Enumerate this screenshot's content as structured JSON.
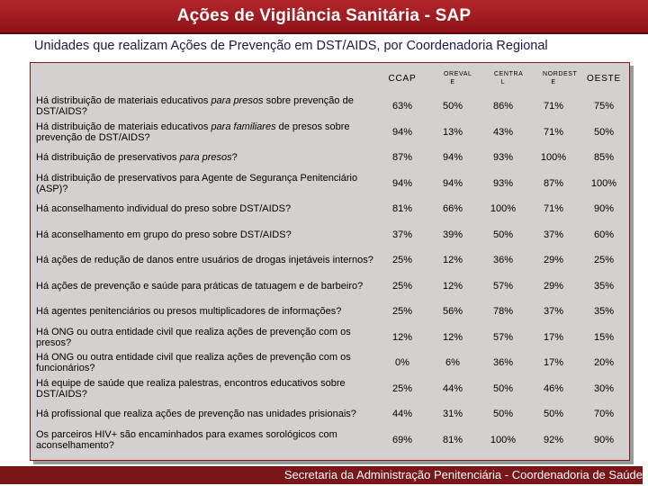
{
  "header": {
    "title": "Ações de Vigilância Sanitária - SAP",
    "subtitle": "Unidades que realizam Ações de Prevenção em DST/AIDS, por Coordenadoria Regional"
  },
  "table": {
    "columns": [
      "CCAP",
      "OREVAL E",
      "CENTRA L",
      "NORDEST E",
      "OESTE"
    ],
    "rows": [
      {
        "q_pre": "Há distribuição de materiais educativos ",
        "q_em": "para presos",
        "q_post": " sobre prevenção  de DST/AIDS?",
        "values": [
          "63%",
          "50%",
          "86%",
          "71%",
          "75%"
        ]
      },
      {
        "q_pre": "Há distribuição de materiais educativos ",
        "q_em": "para familiares",
        "q_post": " de presos sobre prevenção de DST/AIDS?",
        "values": [
          "94%",
          "13%",
          "43%",
          "71%",
          "50%"
        ]
      },
      {
        "q_pre": "Há distribuição de preservativos ",
        "q_em": "para presos",
        "q_post": "?",
        "values": [
          "87%",
          "94%",
          "93%",
          "100%",
          "85%"
        ]
      },
      {
        "q_pre": "Há distribuição de preservativos para Agente de Segurança Penitenciário (ASP)?",
        "q_em": "",
        "q_post": "",
        "values": [
          "94%",
          "94%",
          "93%",
          "87%",
          "100%"
        ]
      },
      {
        "q_pre": "Há aconselhamento individual do preso sobre DST/AIDS?",
        "q_em": "",
        "q_post": "",
        "values": [
          "81%",
          "66%",
          "100%",
          "71%",
          "90%"
        ]
      },
      {
        "q_pre": "Há aconselhamento em grupo do preso sobre DST/AIDS?",
        "q_em": "",
        "q_post": "",
        "values": [
          "37%",
          "39%",
          "50%",
          "37%",
          "60%"
        ]
      },
      {
        "q_pre": "Há ações de redução de danos entre usuários de drogas injetáveis internos?",
        "q_em": "",
        "q_post": "",
        "values": [
          "25%",
          "12%",
          "36%",
          "29%",
          "25%"
        ]
      },
      {
        "q_pre": "Há ações de prevenção e saúde para práticas de tatuagem e de barbeiro?",
        "q_em": "",
        "q_post": "",
        "values": [
          "25%",
          "12%",
          "57%",
          "29%",
          "35%"
        ]
      },
      {
        "q_pre": "Há agentes penitenciários ou presos multiplicadores de informações?",
        "q_em": "",
        "q_post": "",
        "values": [
          "25%",
          "56%",
          "78%",
          "37%",
          "35%"
        ]
      },
      {
        "q_pre": "Há ONG ou outra entidade civil que realiza ações de prevenção com os presos?",
        "q_em": "",
        "q_post": "",
        "values": [
          "12%",
          "12%",
          "57%",
          "17%",
          "15%"
        ]
      },
      {
        "q_pre": "Há ONG ou outra entidade civil que realiza ações de prevenção com os funcionários?",
        "q_em": "",
        "q_post": "",
        "values": [
          "0%",
          "6%",
          "36%",
          "17%",
          "20%"
        ]
      },
      {
        "q_pre": "Há equipe de saúde que realiza palestras, encontros educativos sobre DST/AIDS?",
        "q_em": "",
        "q_post": "",
        "values": [
          "25%",
          "44%",
          "50%",
          "46%",
          "30%"
        ]
      },
      {
        "q_pre": "Há profissional que realiza ações de prevenção nas unidades prisionais?",
        "q_em": "",
        "q_post": "",
        "values": [
          "44%",
          "31%",
          "50%",
          "50%",
          "70%"
        ]
      },
      {
        "q_pre": "Os parceiros HIV+ são encaminhados para exames sorológicos com aconselhamento?",
        "q_em": "",
        "q_post": "",
        "values": [
          "69%",
          "81%",
          "100%",
          "92%",
          "90%"
        ]
      }
    ]
  },
  "footer": {
    "text": "Secretaria da Administração Penitenciária - Coordenadoria de Saúde"
  }
}
